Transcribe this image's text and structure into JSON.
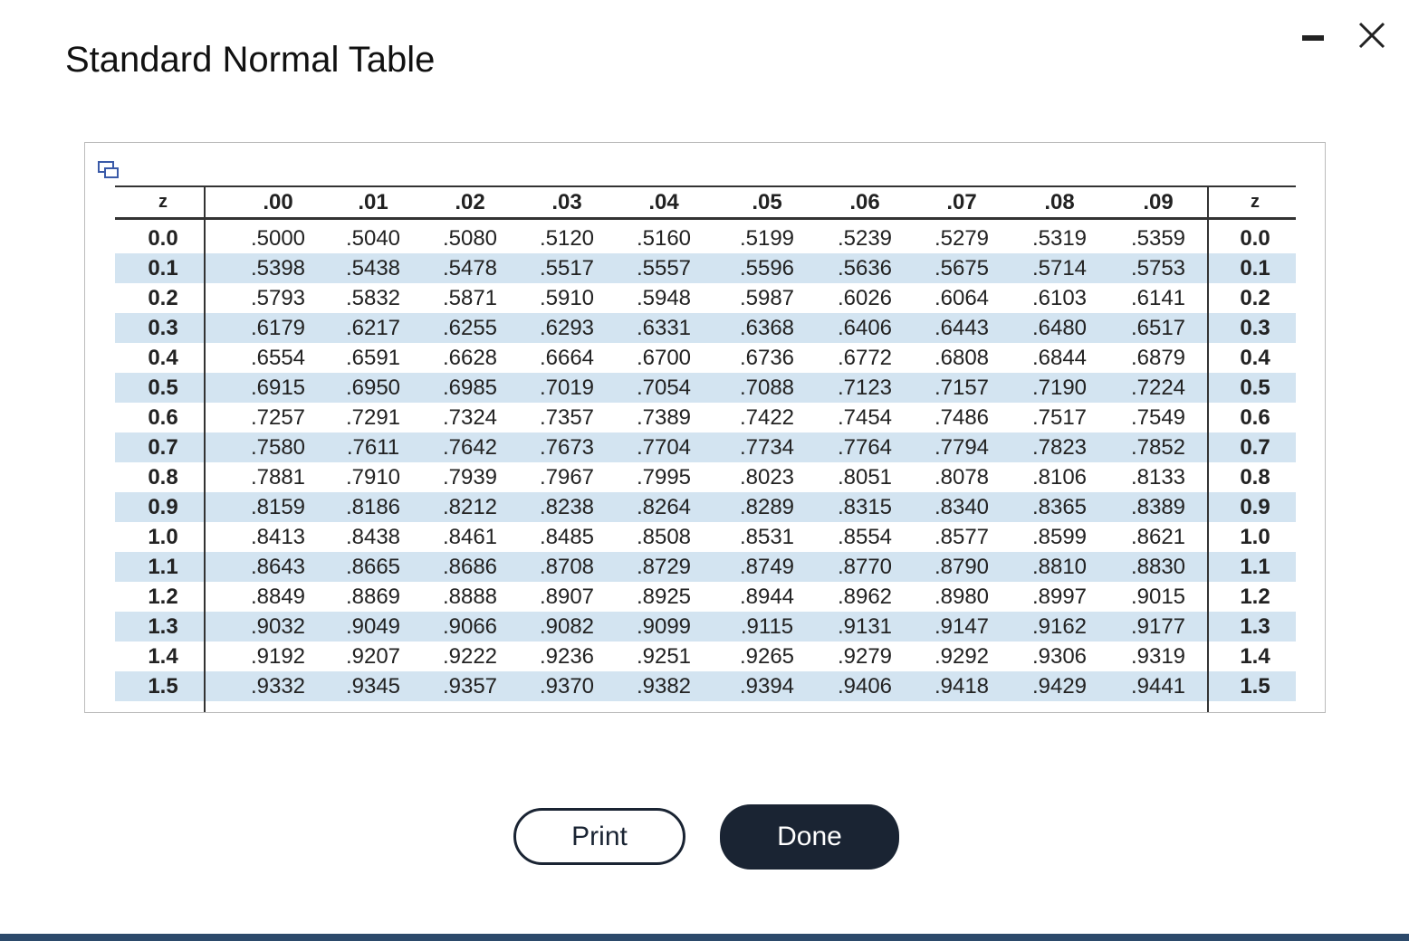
{
  "header": {
    "title": "Standard Normal Table"
  },
  "table": {
    "columns": [
      "z",
      ".00",
      ".01",
      ".02",
      ".03",
      ".04",
      ".05",
      ".06",
      ".07",
      ".08",
      ".09",
      "z"
    ],
    "rows": [
      [
        "0.0",
        ".5000",
        ".5040",
        ".5080",
        ".5120",
        ".5160",
        ".5199",
        ".5239",
        ".5279",
        ".5319",
        ".5359",
        "0.0"
      ],
      [
        "0.1",
        ".5398",
        ".5438",
        ".5478",
        ".5517",
        ".5557",
        ".5596",
        ".5636",
        ".5675",
        ".5714",
        ".5753",
        "0.1"
      ],
      [
        "0.2",
        ".5793",
        ".5832",
        ".5871",
        ".5910",
        ".5948",
        ".5987",
        ".6026",
        ".6064",
        ".6103",
        ".6141",
        "0.2"
      ],
      [
        "0.3",
        ".6179",
        ".6217",
        ".6255",
        ".6293",
        ".6331",
        ".6368",
        ".6406",
        ".6443",
        ".6480",
        ".6517",
        "0.3"
      ],
      [
        "0.4",
        ".6554",
        ".6591",
        ".6628",
        ".6664",
        ".6700",
        ".6736",
        ".6772",
        ".6808",
        ".6844",
        ".6879",
        "0.4"
      ],
      [
        "0.5",
        ".6915",
        ".6950",
        ".6985",
        ".7019",
        ".7054",
        ".7088",
        ".7123",
        ".7157",
        ".7190",
        ".7224",
        "0.5"
      ],
      [
        "0.6",
        ".7257",
        ".7291",
        ".7324",
        ".7357",
        ".7389",
        ".7422",
        ".7454",
        ".7486",
        ".7517",
        ".7549",
        "0.6"
      ],
      [
        "0.7",
        ".7580",
        ".7611",
        ".7642",
        ".7673",
        ".7704",
        ".7734",
        ".7764",
        ".7794",
        ".7823",
        ".7852",
        "0.7"
      ],
      [
        "0.8",
        ".7881",
        ".7910",
        ".7939",
        ".7967",
        ".7995",
        ".8023",
        ".8051",
        ".8078",
        ".8106",
        ".8133",
        "0.8"
      ],
      [
        "0.9",
        ".8159",
        ".8186",
        ".8212",
        ".8238",
        ".8264",
        ".8289",
        ".8315",
        ".8340",
        ".8365",
        ".8389",
        "0.9"
      ],
      [
        "1.0",
        ".8413",
        ".8438",
        ".8461",
        ".8485",
        ".8508",
        ".8531",
        ".8554",
        ".8577",
        ".8599",
        ".8621",
        "1.0"
      ],
      [
        "1.1",
        ".8643",
        ".8665",
        ".8686",
        ".8708",
        ".8729",
        ".8749",
        ".8770",
        ".8790",
        ".8810",
        ".8830",
        "1.1"
      ],
      [
        "1.2",
        ".8849",
        ".8869",
        ".8888",
        ".8907",
        ".8925",
        ".8944",
        ".8962",
        ".8980",
        ".8997",
        ".9015",
        "1.2"
      ],
      [
        "1.3",
        ".9032",
        ".9049",
        ".9066",
        ".9082",
        ".9099",
        ".9115",
        ".9131",
        ".9147",
        ".9162",
        ".9177",
        "1.3"
      ],
      [
        "1.4",
        ".9192",
        ".9207",
        ".9222",
        ".9236",
        ".9251",
        ".9265",
        ".9279",
        ".9292",
        ".9306",
        ".9319",
        "1.4"
      ],
      [
        "1.5",
        ".9332",
        ".9345",
        ".9357",
        ".9370",
        ".9382",
        ".9394",
        ".9406",
        ".9418",
        ".9429",
        ".9441",
        "1.5"
      ]
    ]
  },
  "buttons": {
    "print": "Print",
    "done": "Done"
  }
}
